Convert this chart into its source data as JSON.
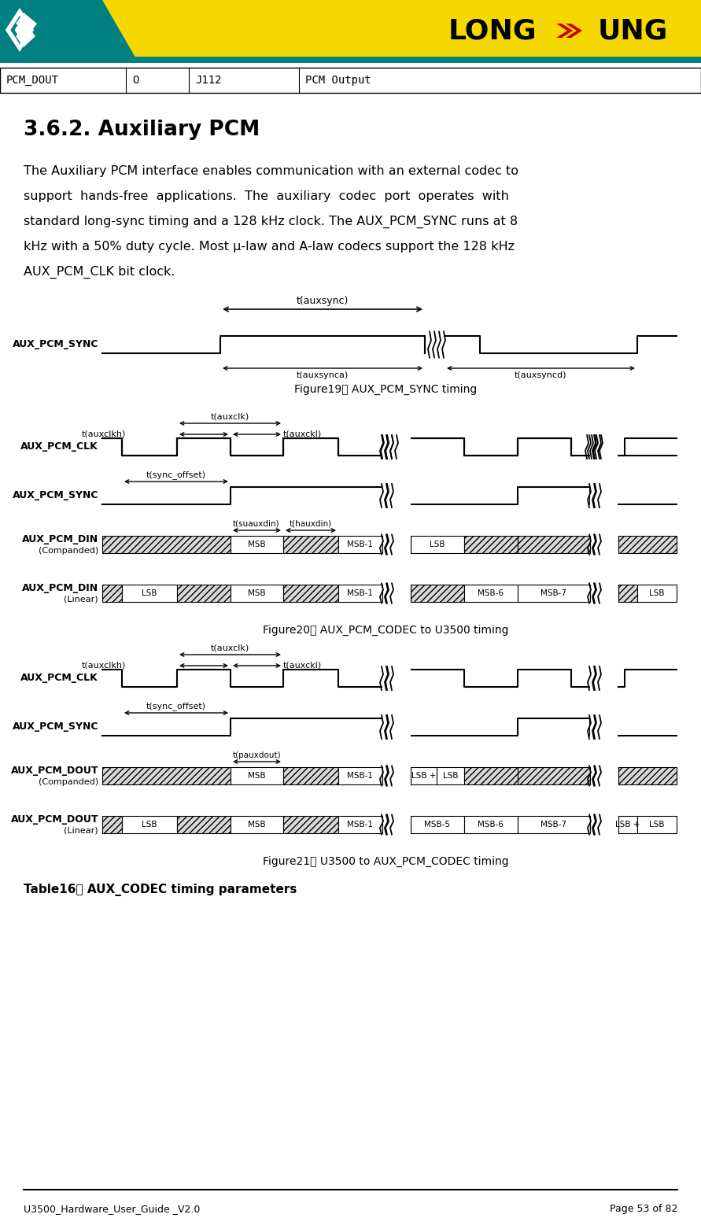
{
  "page_bg": "#ffffff",
  "header_bg": "#f5d800",
  "teal_color": "#008080",
  "red_color": "#cc0000",
  "table_row": [
    "PCM_DOUT",
    "O",
    "J112",
    "PCM Output"
  ],
  "section_title": "3.6.2. Auxiliary PCM",
  "body_lines": [
    "The Auxiliary PCM interface enables communication with an external codec to",
    "support  hands-free  applications.  The  auxiliary  codec  port  operates  with",
    "standard long-sync timing and a 128 kHz clock. The AUX_PCM_SYNC runs at 8",
    "kHz with a 50% duty cycle. Most μ-law and A-law codecs support the 128 kHz",
    "AUX_PCM_CLK bit clock."
  ],
  "fig19_caption": "Figure19： AUX_PCM_SYNC timing",
  "fig20_caption": "Figure20： AUX_PCM_CODEC to U3500 timing",
  "fig21_caption": "Figure21： U3500 to AUX_PCM_CODEC timing",
  "table16_title": "Table16： AUX_CODEC timing parameters",
  "footer_left": "U3500_Hardware_User_Guide _V2.0",
  "footer_right": "Page 53 of 82"
}
